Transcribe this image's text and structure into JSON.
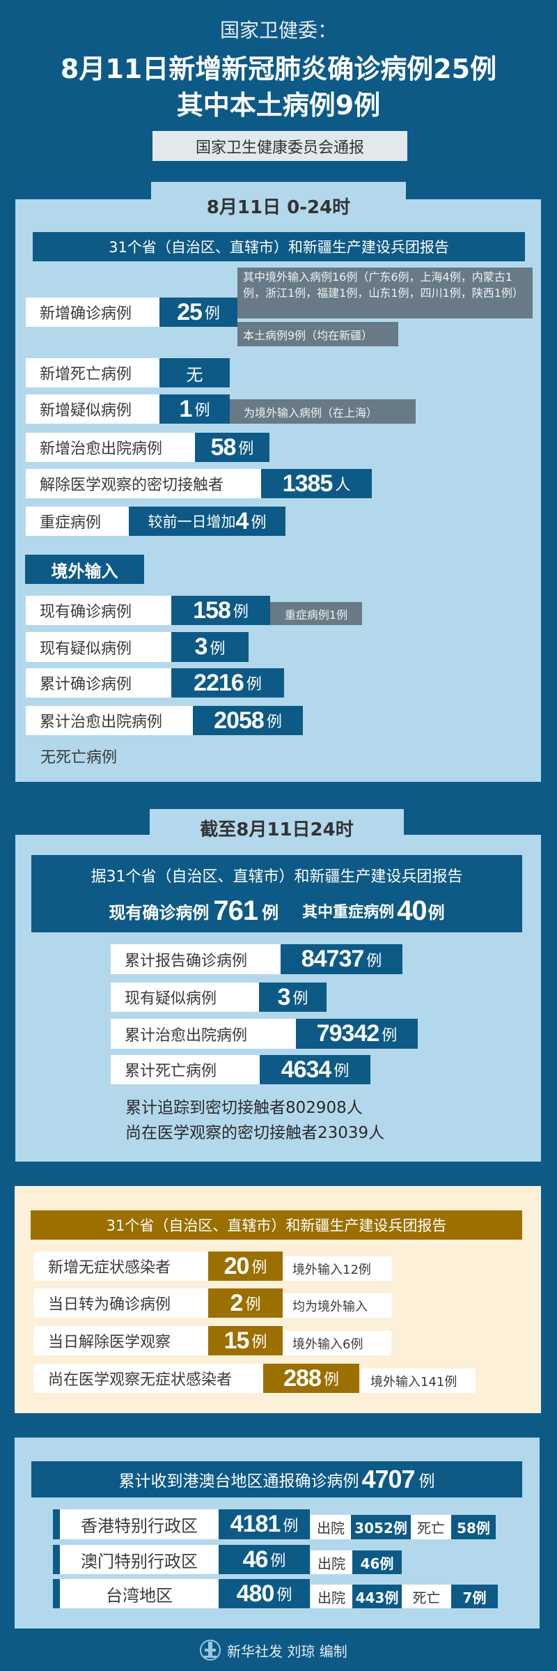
{
  "header": {
    "agency": "国家卫健委：",
    "headline_line1": "8月11日新增新冠肺炎确诊病例25例",
    "headline_line2": "其中本土病例9例",
    "source": "国家卫生健康委员会通报"
  },
  "daily": {
    "tab": "8月11日 0-24时",
    "report_header": "31个省（自治区、直辖市）和新疆生产建设兵团报告",
    "new_confirmed": {
      "label": "新增确诊病例",
      "value": "25",
      "unit": "例",
      "note_imported": "其中境外输入病例16例（广东6例，上海4例，内蒙古1例，浙江1例，福建1例，山东1例，四川1例，陕西1例）",
      "note_local": "本土病例9例（均在新疆）"
    },
    "new_deaths": {
      "label": "新增死亡病例",
      "value": "无"
    },
    "new_suspected": {
      "label": "新增疑似病例",
      "value": "1",
      "unit": "例",
      "note": "为境外输入病例（在上海）"
    },
    "new_recovered": {
      "label": "新增治愈出院病例",
      "value": "58",
      "unit": "例"
    },
    "released_contacts": {
      "label": "解除医学观察的密切接触者",
      "value": "1385",
      "unit": "人"
    },
    "severe": {
      "label": "重症病例",
      "prefix": "较前一日增加",
      "value": "4",
      "unit": "例"
    },
    "imported": {
      "title": "境外输入",
      "current_confirmed": {
        "label": "现有确诊病例",
        "value": "158",
        "unit": "例",
        "note": "重症病例1例"
      },
      "current_suspected": {
        "label": "现有疑似病例",
        "value": "3",
        "unit": "例"
      },
      "total_confirmed": {
        "label": "累计确诊病例",
        "value": "2216",
        "unit": "例"
      },
      "total_recovered": {
        "label": "累计治愈出院病例",
        "value": "2058",
        "unit": "例"
      },
      "deaths_note": "无死亡病例"
    }
  },
  "cumulative": {
    "tab": "截至8月11日24时",
    "report_line": "据31个省（自治区、直辖市）和新疆生产建设兵团报告",
    "current_confirmed_label": "现有确诊病例",
    "current_confirmed_value": "761",
    "current_confirmed_unit": "例",
    "severe_label": "其中重症病例",
    "severe_value": "40",
    "severe_unit": "例",
    "total_confirmed": {
      "label": "累计报告确诊病例",
      "value": "84737",
      "unit": "例"
    },
    "current_suspected": {
      "label": "现有疑似病例",
      "value": "3",
      "unit": "例"
    },
    "total_recovered": {
      "label": "累计治愈出院病例",
      "value": "79342",
      "unit": "例"
    },
    "total_deaths": {
      "label": "累计死亡病例",
      "value": "4634",
      "unit": "例"
    },
    "traced_contacts": "累计追踪到密切接触者802908人",
    "observed_contacts": "尚在医学观察的密切接触者23039人"
  },
  "asymptomatic": {
    "report_header": "31个省（自治区、直辖市）和新疆生产建设兵团报告",
    "rows": [
      {
        "label": "新增无症状感染者",
        "value": "20",
        "unit": "例",
        "note": "境外输入12例"
      },
      {
        "label": "当日转为确诊病例",
        "value": "2",
        "unit": "例",
        "note": "均为境外输入"
      },
      {
        "label": "当日解除医学观察",
        "value": "15",
        "unit": "例",
        "note": "境外输入6例"
      },
      {
        "label": "尚在医学观察无症状感染者",
        "value": "288",
        "unit": "例",
        "note": "境外输入141例"
      }
    ]
  },
  "hmt": {
    "header_text": "累计收到港澳台地区通报确诊病例",
    "header_value": "4707",
    "header_unit": "例",
    "discharged_label": "出院",
    "death_label": "死亡",
    "regions": [
      {
        "name": "香港特别行政区",
        "value": "4181",
        "unit": "例",
        "discharged": "3052例",
        "deaths": "58例"
      },
      {
        "name": "澳门特别行政区",
        "value": "46",
        "unit": "例",
        "discharged": "46例"
      },
      {
        "name": "台湾地区",
        "value": "480",
        "unit": "例",
        "discharged": "443例",
        "deaths": "7例"
      }
    ]
  },
  "footer": {
    "credit": "新华社发 刘琼 编制",
    "logo_text": "XINHUA"
  },
  "colors": {
    "background": "#0d5a87",
    "panel": "#b3d8ec",
    "gray_note": "#687a85",
    "cream_panel": "#fdf0d8",
    "gold": "#9b7000"
  }
}
